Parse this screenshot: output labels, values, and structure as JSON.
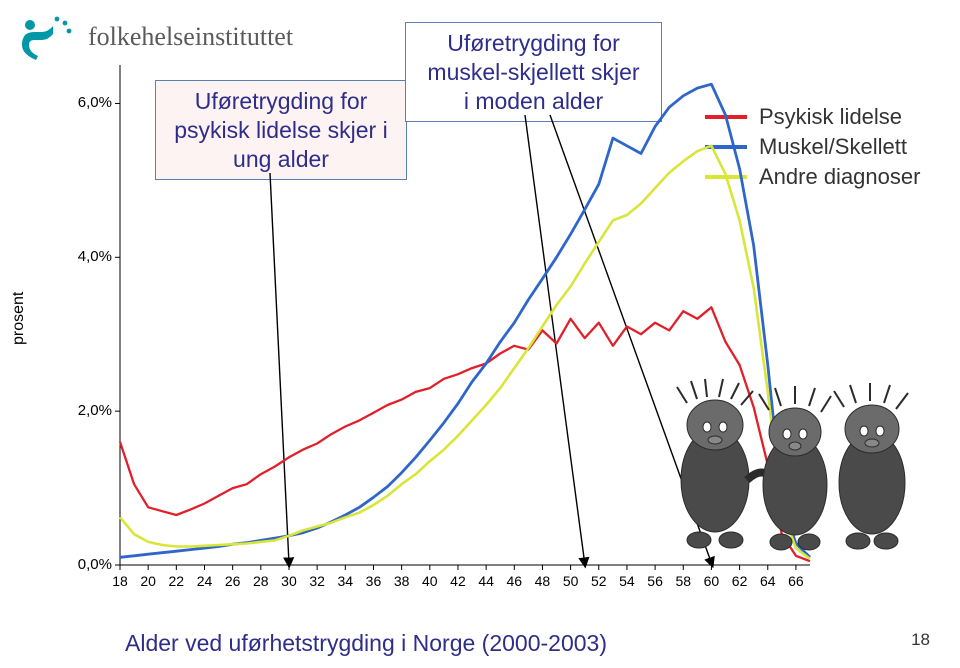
{
  "logo_text": "folkehelseinstituttet",
  "logo_color": "#0097a7",
  "box1": {
    "l1": "Uføretrygding for",
    "l2": "psykisk lidelse skjer i",
    "l3": "ung alder"
  },
  "box2": {
    "l1": "Uføretrygding for",
    "l2": "muskel-skjellett skjer",
    "l3": "i moden alder"
  },
  "legend": {
    "items": [
      {
        "label": "Psykisk lidelse",
        "color": "#e0202a"
      },
      {
        "label": "Muskel/Skellett",
        "color": "#2f66c9"
      },
      {
        "label": "Andre diagnoser",
        "color": "#d8e63a"
      }
    ]
  },
  "caption": "Alder ved uførhetstrygding i Norge (2000-2003)",
  "page": "18",
  "chart": {
    "ylabel": "prosent",
    "y": {
      "min": 0.0,
      "max": 6.5,
      "ticks": [
        0.0,
        2.0,
        4.0,
        6.0
      ],
      "labels": [
        "0,0%",
        "2,0%",
        "4,0%",
        "6,0%"
      ]
    },
    "x": {
      "min": 18,
      "max": 67,
      "ticks": [
        18,
        20,
        22,
        24,
        26,
        28,
        30,
        32,
        34,
        36,
        38,
        40,
        42,
        44,
        46,
        48,
        50,
        52,
        54,
        56,
        58,
        60,
        62,
        64,
        66
      ]
    },
    "arrows_x": [
      30,
      51,
      60
    ],
    "box_anchor_x": {
      "box1": 38,
      "box2": 52
    },
    "series": [
      {
        "name": "Psykisk lidelse",
        "color": "#e0202a",
        "width": 2.3,
        "data": [
          [
            18,
            1.6
          ],
          [
            19,
            1.05
          ],
          [
            20,
            0.75
          ],
          [
            21,
            0.7
          ],
          [
            22,
            0.65
          ],
          [
            23,
            0.72
          ],
          [
            24,
            0.8
          ],
          [
            25,
            0.9
          ],
          [
            26,
            1.0
          ],
          [
            27,
            1.05
          ],
          [
            28,
            1.18
          ],
          [
            29,
            1.28
          ],
          [
            30,
            1.4
          ],
          [
            31,
            1.5
          ],
          [
            32,
            1.58
          ],
          [
            33,
            1.7
          ],
          [
            34,
            1.8
          ],
          [
            35,
            1.88
          ],
          [
            36,
            1.98
          ],
          [
            37,
            2.08
          ],
          [
            38,
            2.15
          ],
          [
            39,
            2.25
          ],
          [
            40,
            2.3
          ],
          [
            41,
            2.42
          ],
          [
            42,
            2.48
          ],
          [
            43,
            2.56
          ],
          [
            44,
            2.62
          ],
          [
            45,
            2.75
          ],
          [
            46,
            2.85
          ],
          [
            47,
            2.8
          ],
          [
            48,
            3.05
          ],
          [
            49,
            2.88
          ],
          [
            50,
            3.2
          ],
          [
            51,
            2.95
          ],
          [
            52,
            3.15
          ],
          [
            53,
            2.85
          ],
          [
            54,
            3.1
          ],
          [
            55,
            3.0
          ],
          [
            56,
            3.15
          ],
          [
            57,
            3.05
          ],
          [
            58,
            3.3
          ],
          [
            59,
            3.2
          ],
          [
            60,
            3.35
          ],
          [
            61,
            2.9
          ],
          [
            62,
            2.6
          ],
          [
            63,
            2.05
          ],
          [
            64,
            1.3
          ],
          [
            65,
            0.4
          ],
          [
            66,
            0.12
          ],
          [
            67,
            0.05
          ]
        ]
      },
      {
        "name": "Muskel/Skellett",
        "color": "#2f66c9",
        "width": 2.8,
        "data": [
          [
            18,
            0.1
          ],
          [
            19,
            0.12
          ],
          [
            20,
            0.14
          ],
          [
            21,
            0.16
          ],
          [
            22,
            0.18
          ],
          [
            23,
            0.2
          ],
          [
            24,
            0.22
          ],
          [
            25,
            0.24
          ],
          [
            26,
            0.27
          ],
          [
            27,
            0.29
          ],
          [
            28,
            0.32
          ],
          [
            29,
            0.35
          ],
          [
            30,
            0.38
          ],
          [
            31,
            0.42
          ],
          [
            32,
            0.48
          ],
          [
            33,
            0.56
          ],
          [
            34,
            0.65
          ],
          [
            35,
            0.75
          ],
          [
            36,
            0.88
          ],
          [
            37,
            1.02
          ],
          [
            38,
            1.2
          ],
          [
            39,
            1.4
          ],
          [
            40,
            1.62
          ],
          [
            41,
            1.85
          ],
          [
            42,
            2.1
          ],
          [
            43,
            2.38
          ],
          [
            44,
            2.62
          ],
          [
            45,
            2.9
          ],
          [
            46,
            3.15
          ],
          [
            47,
            3.45
          ],
          [
            48,
            3.72
          ],
          [
            49,
            4.0
          ],
          [
            50,
            4.3
          ],
          [
            51,
            4.62
          ],
          [
            52,
            4.95
          ],
          [
            53,
            5.55
          ],
          [
            54,
            5.45
          ],
          [
            55,
            5.35
          ],
          [
            56,
            5.7
          ],
          [
            57,
            5.95
          ],
          [
            58,
            6.1
          ],
          [
            59,
            6.2
          ],
          [
            60,
            6.25
          ],
          [
            61,
            5.85
          ],
          [
            62,
            5.15
          ],
          [
            63,
            4.15
          ],
          [
            64,
            2.6
          ],
          [
            65,
            0.85
          ],
          [
            66,
            0.28
          ],
          [
            67,
            0.1
          ]
        ]
      },
      {
        "name": "Andre diagnoser",
        "color": "#d8e63a",
        "width": 2.6,
        "data": [
          [
            18,
            0.62
          ],
          [
            19,
            0.4
          ],
          [
            20,
            0.3
          ],
          [
            21,
            0.26
          ],
          [
            22,
            0.24
          ],
          [
            23,
            0.24
          ],
          [
            24,
            0.25
          ],
          [
            25,
            0.26
          ],
          [
            26,
            0.27
          ],
          [
            27,
            0.28
          ],
          [
            28,
            0.3
          ],
          [
            29,
            0.32
          ],
          [
            30,
            0.38
          ],
          [
            31,
            0.45
          ],
          [
            32,
            0.5
          ],
          [
            33,
            0.55
          ],
          [
            34,
            0.62
          ],
          [
            35,
            0.68
          ],
          [
            36,
            0.78
          ],
          [
            37,
            0.9
          ],
          [
            38,
            1.05
          ],
          [
            39,
            1.18
          ],
          [
            40,
            1.35
          ],
          [
            41,
            1.5
          ],
          [
            42,
            1.68
          ],
          [
            43,
            1.88
          ],
          [
            44,
            2.08
          ],
          [
            45,
            2.3
          ],
          [
            46,
            2.56
          ],
          [
            47,
            2.82
          ],
          [
            48,
            3.1
          ],
          [
            49,
            3.38
          ],
          [
            50,
            3.62
          ],
          [
            51,
            3.92
          ],
          [
            52,
            4.2
          ],
          [
            53,
            4.48
          ],
          [
            54,
            4.55
          ],
          [
            55,
            4.7
          ],
          [
            56,
            4.9
          ],
          [
            57,
            5.1
          ],
          [
            58,
            5.25
          ],
          [
            59,
            5.38
          ],
          [
            60,
            5.45
          ],
          [
            61,
            5.08
          ],
          [
            62,
            4.48
          ],
          [
            63,
            3.6
          ],
          [
            64,
            2.25
          ],
          [
            65,
            0.72
          ],
          [
            66,
            0.22
          ],
          [
            67,
            0.08
          ]
        ]
      }
    ]
  }
}
